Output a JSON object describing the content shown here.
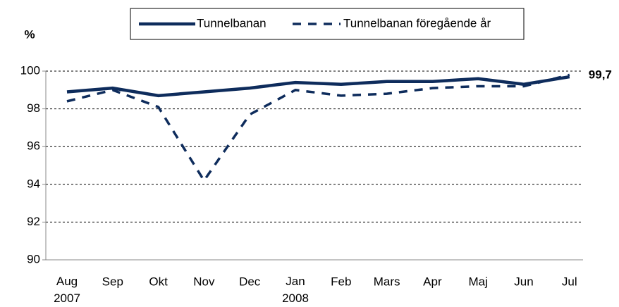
{
  "chart_data": {
    "type": "line",
    "ylabel": "%",
    "categories": [
      "Aug 2007",
      "Sep",
      "Okt",
      "Nov",
      "Dec",
      "Jan 2008",
      "Feb",
      "Mars",
      "Apr",
      "Maj",
      "Jun",
      "Jul"
    ],
    "series": [
      {
        "name": "Tunnelbanan",
        "color": "#0e2c5c",
        "dash": false,
        "values": [
          98.9,
          99.1,
          98.7,
          98.9,
          99.1,
          99.4,
          99.3,
          99.45,
          99.45,
          99.6,
          99.3,
          99.7
        ],
        "value_labels": [
          null,
          null,
          null,
          null,
          null,
          null,
          null,
          null,
          null,
          null,
          null,
          "99,7"
        ]
      },
      {
        "name": "Tunnelbanan föregående år",
        "color": "#0e2c5c",
        "dash": true,
        "values": [
          98.4,
          99.0,
          98.1,
          94.2,
          97.7,
          99.0,
          98.7,
          98.8,
          99.1,
          99.2,
          99.2,
          99.8
        ]
      }
    ],
    "ylim": [
      90,
      100
    ],
    "yticks": [
      90,
      92,
      94,
      96,
      98,
      100
    ],
    "grid": true,
    "legend": "top"
  }
}
